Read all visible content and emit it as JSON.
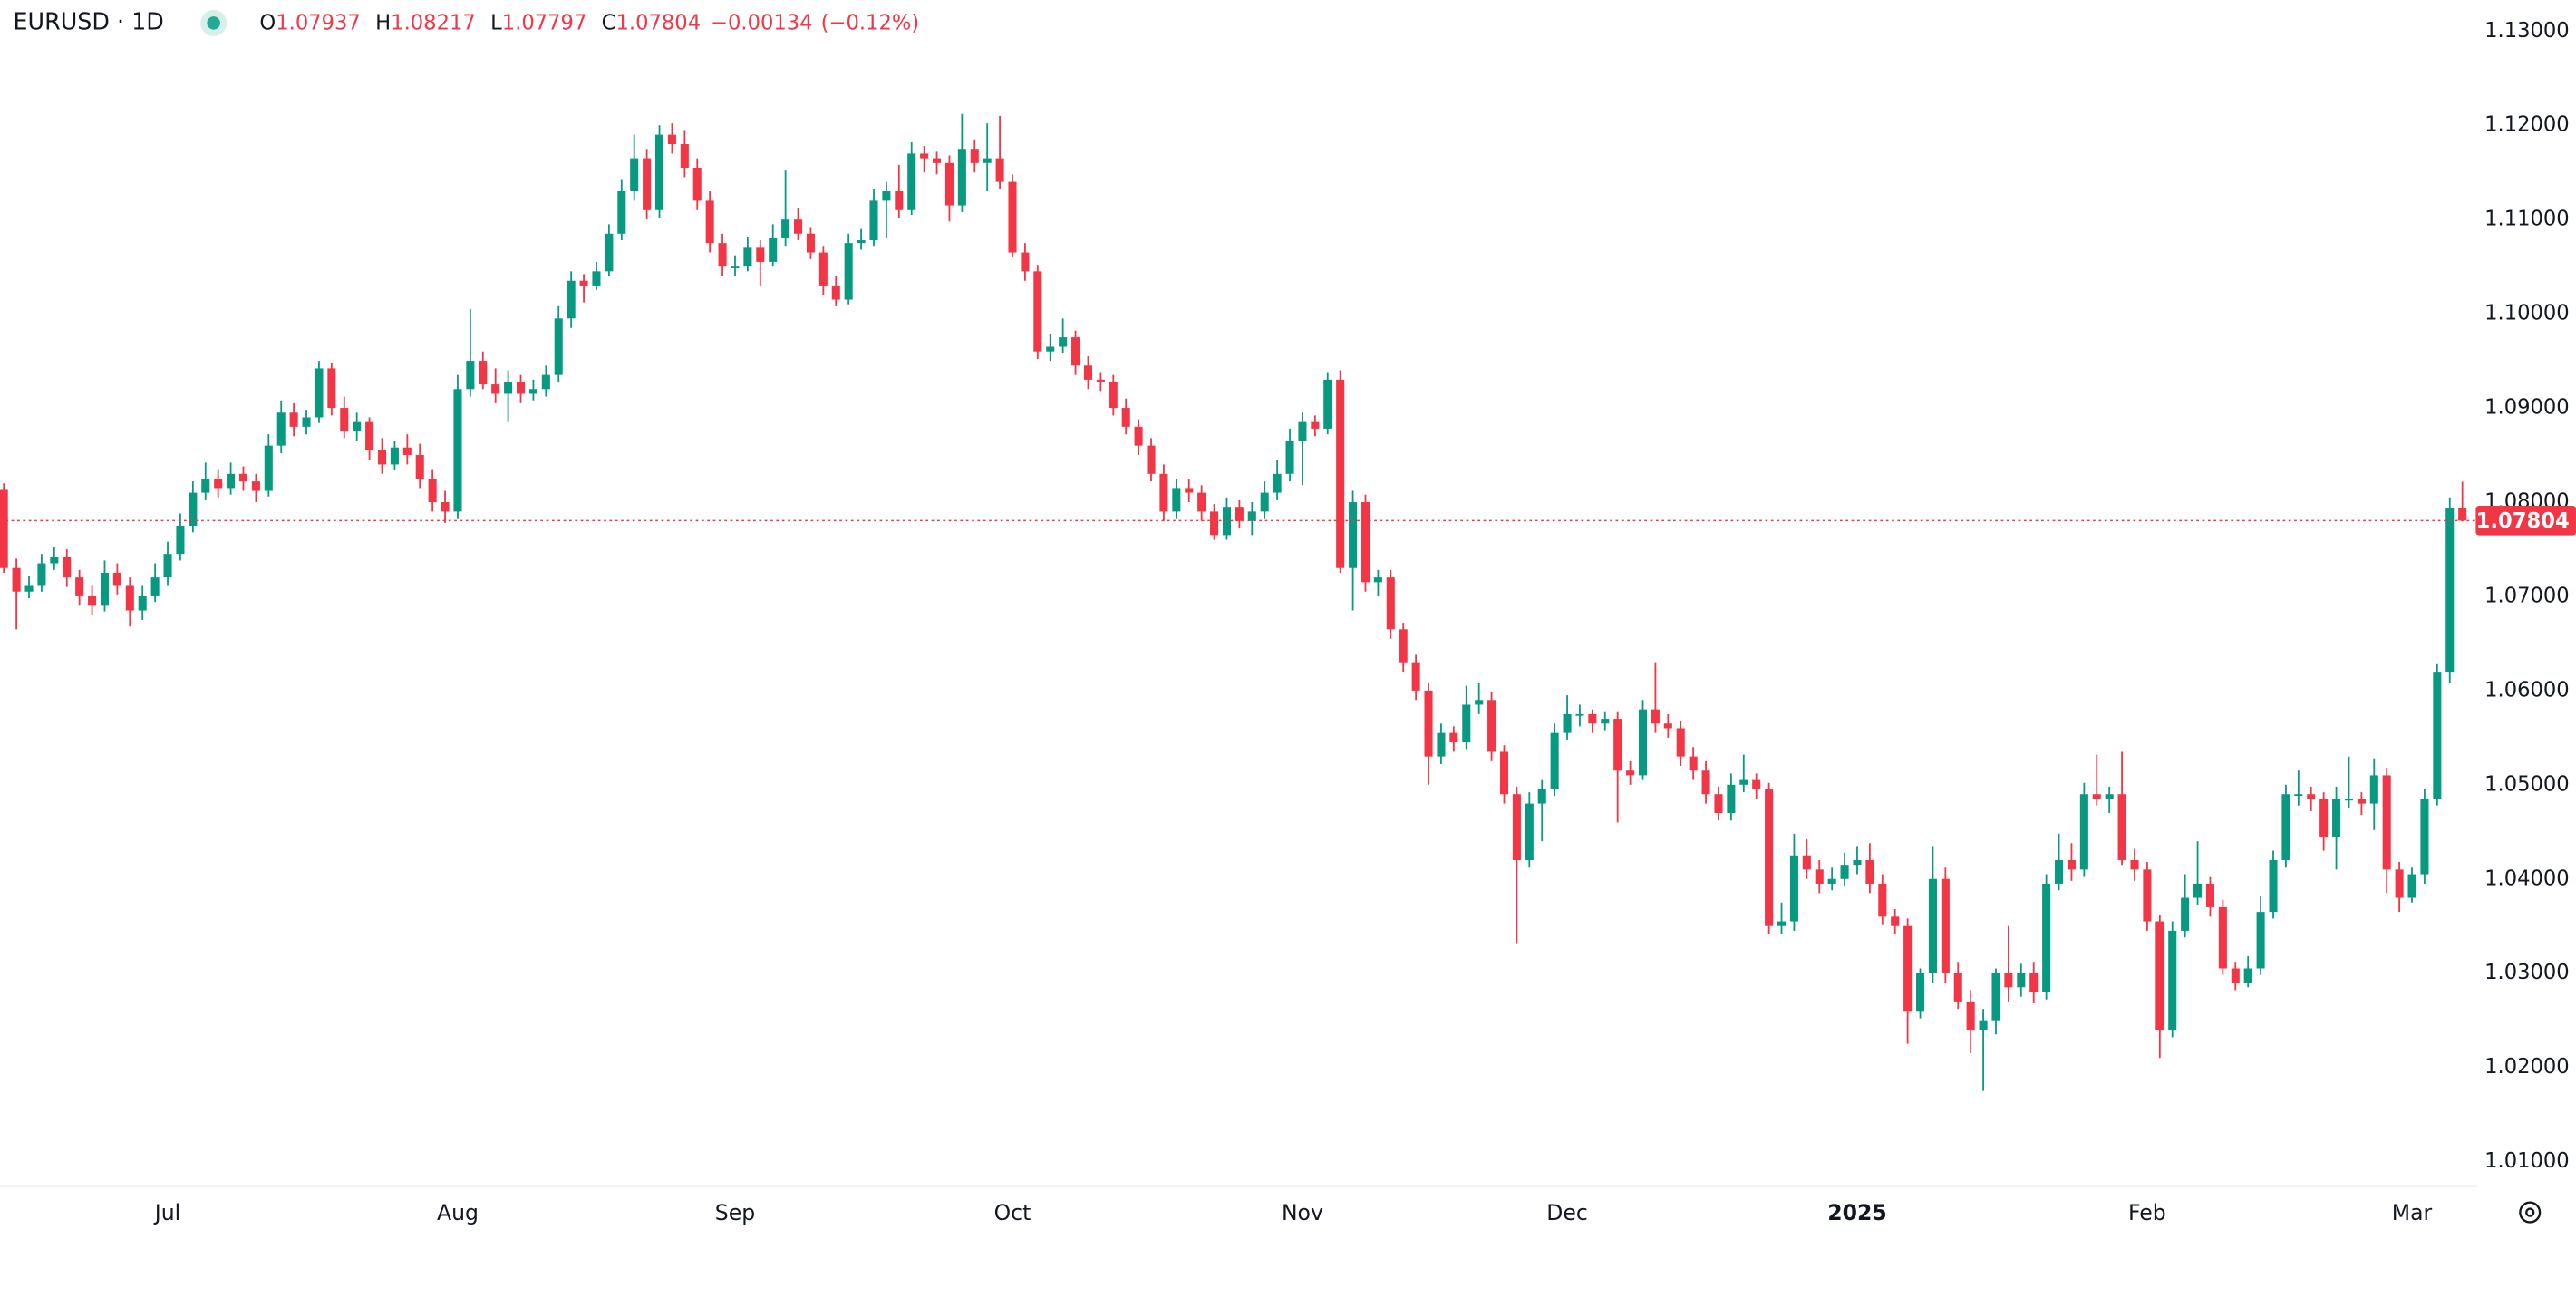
{
  "chart_data": {
    "type": "candlestick",
    "symbol": "EURUSD · 1D",
    "ohlc_labels": [
      "O",
      "H",
      "L",
      "C"
    ],
    "change": "−0.00134",
    "change_pct": "(−0.12%)",
    "up_color": "#089981",
    "down_color": "#f23645",
    "grid": false,
    "xlim": [
      -0.3,
      195.8
    ],
    "ylim": [
      1.0074,
      1.1333
    ],
    "xticks": [
      {
        "value": 13,
        "label": "Jul"
      },
      {
        "value": 36,
        "label": "Aug"
      },
      {
        "value": 58,
        "label": "Sep"
      },
      {
        "value": 80,
        "label": "Oct"
      },
      {
        "value": 103,
        "label": "Nov"
      },
      {
        "value": 124,
        "label": "Dec"
      },
      {
        "value": 147,
        "label": "2025"
      },
      {
        "value": 170,
        "label": "Feb"
      },
      {
        "value": 191,
        "label": "Mar"
      }
    ],
    "yticks": [
      {
        "value": 1.01,
        "label": "1.01000"
      },
      {
        "value": 1.02,
        "label": "1.02000"
      },
      {
        "value": 1.03,
        "label": "1.03000"
      },
      {
        "value": 1.04,
        "label": "1.04000"
      },
      {
        "value": 1.05,
        "label": "1.05000"
      },
      {
        "value": 1.06,
        "label": "1.06000"
      },
      {
        "value": 1.07,
        "label": "1.07000"
      },
      {
        "value": 1.08,
        "label": "1.08000"
      },
      {
        "value": 1.09,
        "label": "1.09000"
      },
      {
        "value": 1.1,
        "label": "1.10000"
      },
      {
        "value": 1.11,
        "label": "1.11000"
      },
      {
        "value": 1.12,
        "label": "1.12000"
      },
      {
        "value": 1.13,
        "label": "1.13000"
      }
    ],
    "ohlc": [
      [
        1.0813,
        1.082,
        1.0725,
        1.073
      ],
      [
        1.073,
        1.074,
        1.0665,
        1.0705
      ],
      [
        1.0705,
        1.0722,
        1.0698,
        1.0712
      ],
      [
        1.0712,
        1.0745,
        1.0705,
        1.0735
      ],
      [
        1.0735,
        1.0752,
        1.0728,
        1.0742
      ],
      [
        1.0742,
        1.075,
        1.071,
        1.072
      ],
      [
        1.072,
        1.0728,
        1.069,
        1.07
      ],
      [
        1.07,
        1.0712,
        1.068,
        1.069
      ],
      [
        1.069,
        1.0738,
        1.0684,
        1.0725
      ],
      [
        1.0725,
        1.0735,
        1.0702,
        1.0712
      ],
      [
        1.0712,
        1.072,
        1.0668,
        1.0685
      ],
      [
        1.0685,
        1.0712,
        1.0675,
        1.07
      ],
      [
        1.07,
        1.0735,
        1.0694,
        1.072
      ],
      [
        1.072,
        1.0758,
        1.0712,
        1.0745
      ],
      [
        1.0745,
        1.0788,
        1.0738,
        1.0775
      ],
      [
        1.0775,
        1.0822,
        1.0768,
        1.081
      ],
      [
        1.081,
        1.0842,
        1.0802,
        1.0825
      ],
      [
        1.0825,
        1.0835,
        1.0805,
        1.0815
      ],
      [
        1.0815,
        1.0842,
        1.0808,
        1.083
      ],
      [
        1.083,
        1.0838,
        1.0812,
        1.0822
      ],
      [
        1.0822,
        1.083,
        1.08,
        1.0812
      ],
      [
        1.0812,
        1.0872,
        1.0806,
        1.086
      ],
      [
        1.086,
        1.0908,
        1.0852,
        1.0895
      ],
      [
        1.0895,
        1.0905,
        1.087,
        1.088
      ],
      [
        1.088,
        1.0898,
        1.0872,
        1.089
      ],
      [
        1.089,
        1.095,
        1.0884,
        1.0942
      ],
      [
        1.0942,
        1.0948,
        1.0892,
        1.09
      ],
      [
        1.09,
        1.0912,
        1.0868,
        1.0875
      ],
      [
        1.0875,
        1.0895,
        1.0865,
        1.0885
      ],
      [
        1.0885,
        1.089,
        1.0845,
        1.0855
      ],
      [
        1.0855,
        1.0868,
        1.083,
        1.084
      ],
      [
        1.084,
        1.0865,
        1.0834,
        1.0858
      ],
      [
        1.0858,
        1.0872,
        1.084,
        1.085
      ],
      [
        1.085,
        1.0862,
        1.0815,
        1.0825
      ],
      [
        1.0825,
        1.0835,
        1.079,
        1.08
      ],
      [
        1.08,
        1.0812,
        1.0778,
        1.079
      ],
      [
        1.079,
        1.0935,
        1.0782,
        1.092
      ],
      [
        1.092,
        1.1005,
        1.0912,
        1.095
      ],
      [
        1.095,
        1.096,
        1.092,
        1.0925
      ],
      [
        1.0925,
        1.0942,
        1.0905,
        1.0915
      ],
      [
        1.0915,
        1.094,
        1.0885,
        1.0928
      ],
      [
        1.0928,
        1.0935,
        1.0905,
        1.0915
      ],
      [
        1.0915,
        1.093,
        1.0908,
        1.092
      ],
      [
        1.092,
        1.0945,
        1.0912,
        1.0935
      ],
      [
        1.0935,
        1.1008,
        1.0928,
        1.0995
      ],
      [
        1.0995,
        1.1045,
        1.0985,
        1.1035
      ],
      [
        1.1035,
        1.1042,
        1.1012,
        1.103
      ],
      [
        1.103,
        1.1055,
        1.1025,
        1.1045
      ],
      [
        1.1045,
        1.1095,
        1.104,
        1.1085
      ],
      [
        1.1085,
        1.1142,
        1.1078,
        1.113
      ],
      [
        1.113,
        1.119,
        1.112,
        1.1165
      ],
      [
        1.1165,
        1.1175,
        1.11,
        1.111
      ],
      [
        1.111,
        1.12,
        1.1102,
        1.119
      ],
      [
        1.119,
        1.1202,
        1.117,
        1.118
      ],
      [
        1.118,
        1.1195,
        1.1145,
        1.1155
      ],
      [
        1.1155,
        1.1165,
        1.111,
        1.112
      ],
      [
        1.112,
        1.113,
        1.1065,
        1.1075
      ],
      [
        1.1075,
        1.1085,
        1.104,
        1.105
      ],
      [
        1.105,
        1.1062,
        1.104,
        1.105
      ],
      [
        1.105,
        1.1082,
        1.1045,
        1.107
      ],
      [
        1.107,
        1.1078,
        1.103,
        1.1055
      ],
      [
        1.1055,
        1.1095,
        1.105,
        1.108
      ],
      [
        1.108,
        1.1152,
        1.1072,
        1.11
      ],
      [
        1.11,
        1.1112,
        1.1078,
        1.1085
      ],
      [
        1.1085,
        1.1092,
        1.1058,
        1.1065
      ],
      [
        1.1065,
        1.1072,
        1.102,
        1.103
      ],
      [
        1.103,
        1.104,
        1.1008,
        1.1015
      ],
      [
        1.1015,
        1.1085,
        1.101,
        1.1075
      ],
      [
        1.1075,
        1.109,
        1.1068,
        1.1078
      ],
      [
        1.1078,
        1.1132,
        1.1072,
        1.112
      ],
      [
        1.112,
        1.114,
        1.108,
        1.113
      ],
      [
        1.113,
        1.1158,
        1.1102,
        1.111
      ],
      [
        1.111,
        1.1182,
        1.1105,
        1.117
      ],
      [
        1.117,
        1.1178,
        1.115,
        1.1165
      ],
      [
        1.1165,
        1.1172,
        1.1148,
        1.116
      ],
      [
        1.116,
        1.1168,
        1.1098,
        1.1115
      ],
      [
        1.1115,
        1.1212,
        1.1108,
        1.1175
      ],
      [
        1.1175,
        1.1185,
        1.115,
        1.116
      ],
      [
        1.116,
        1.1202,
        1.113,
        1.1165
      ],
      [
        1.1165,
        1.121,
        1.1132,
        1.114
      ],
      [
        1.114,
        1.1148,
        1.106,
        1.1065
      ],
      [
        1.1065,
        1.1075,
        1.1035,
        1.1045
      ],
      [
        1.1045,
        1.1052,
        1.0952,
        1.096
      ],
      [
        1.096,
        1.0978,
        1.095,
        1.0965
      ],
      [
        1.0965,
        1.0995,
        1.0958,
        1.0975
      ],
      [
        1.0975,
        1.0982,
        1.0935,
        1.0945
      ],
      [
        1.0945,
        1.0955,
        1.092,
        1.093
      ],
      [
        1.093,
        1.0938,
        1.0918,
        1.0928
      ],
      [
        1.0928,
        1.0935,
        1.0892,
        1.09
      ],
      [
        1.09,
        1.091,
        1.0872,
        1.088
      ],
      [
        1.088,
        1.0888,
        1.085,
        1.086
      ],
      [
        1.086,
        1.0868,
        1.0822,
        1.083
      ],
      [
        1.083,
        1.084,
        1.078,
        1.079
      ],
      [
        1.079,
        1.0825,
        1.0782,
        1.0815
      ],
      [
        1.0815,
        1.0825,
        1.08,
        1.081
      ],
      [
        1.081,
        1.0818,
        1.078,
        1.079
      ],
      [
        1.079,
        1.0798,
        1.076,
        1.0765
      ],
      [
        1.0765,
        1.0805,
        1.076,
        1.0795
      ],
      [
        1.0795,
        1.0802,
        1.0772,
        1.078
      ],
      [
        1.078,
        1.08,
        1.0765,
        1.079
      ],
      [
        1.079,
        1.0822,
        1.0782,
        1.081
      ],
      [
        1.081,
        1.0845,
        1.0802,
        1.083
      ],
      [
        1.083,
        1.0878,
        1.0822,
        1.0865
      ],
      [
        1.0865,
        1.0895,
        1.0818,
        1.0885
      ],
      [
        1.0885,
        1.0892,
        1.087,
        1.0878
      ],
      [
        1.0878,
        1.0938,
        1.0872,
        1.093
      ],
      [
        1.093,
        1.094,
        1.0725,
        1.073
      ],
      [
        1.073,
        1.0812,
        1.0685,
        1.08
      ],
      [
        1.08,
        1.0808,
        1.0705,
        1.0715
      ],
      [
        1.0715,
        1.0728,
        1.07,
        1.072
      ],
      [
        1.072,
        1.0728,
        1.0655,
        1.0665
      ],
      [
        1.0665,
        1.0672,
        1.062,
        1.063
      ],
      [
        1.063,
        1.0638,
        1.059,
        1.06
      ],
      [
        1.06,
        1.0608,
        1.05,
        1.053
      ],
      [
        1.053,
        1.0565,
        1.0522,
        1.0555
      ],
      [
        1.0555,
        1.0562,
        1.0535,
        1.0545
      ],
      [
        1.0545,
        1.0605,
        1.0538,
        1.0585
      ],
      [
        1.0585,
        1.0608,
        1.0575,
        1.059
      ],
      [
        1.059,
        1.0598,
        1.0525,
        1.0535
      ],
      [
        1.0535,
        1.0542,
        1.048,
        1.049
      ],
      [
        1.049,
        1.0498,
        1.0332,
        1.042
      ],
      [
        1.042,
        1.0492,
        1.0412,
        1.048
      ],
      [
        1.048,
        1.0505,
        1.044,
        1.0495
      ],
      [
        1.0495,
        1.0565,
        1.0488,
        1.0555
      ],
      [
        1.0555,
        1.0595,
        1.0548,
        1.0575
      ],
      [
        1.0575,
        1.0585,
        1.0562,
        1.0575
      ],
      [
        1.0575,
        1.058,
        1.0555,
        1.0565
      ],
      [
        1.0565,
        1.0578,
        1.0558,
        1.057
      ],
      [
        1.057,
        1.0578,
        1.046,
        1.0515
      ],
      [
        1.0515,
        1.0525,
        1.05,
        1.051
      ],
      [
        1.051,
        1.059,
        1.0505,
        1.058
      ],
      [
        1.058,
        1.063,
        1.0555,
        1.0565
      ],
      [
        1.0565,
        1.0575,
        1.055,
        1.056
      ],
      [
        1.056,
        1.0568,
        1.052,
        1.053
      ],
      [
        1.053,
        1.054,
        1.0505,
        1.0515
      ],
      [
        1.0515,
        1.0525,
        1.048,
        1.049
      ],
      [
        1.049,
        1.0498,
        1.0462,
        1.047
      ],
      [
        1.047,
        1.0512,
        1.0462,
        1.05
      ],
      [
        1.05,
        1.0532,
        1.0492,
        1.0505
      ],
      [
        1.0505,
        1.0512,
        1.0485,
        1.0495
      ],
      [
        1.0495,
        1.0502,
        1.0342,
        1.035
      ],
      [
        1.035,
        1.0375,
        1.0342,
        1.0355
      ],
      [
        1.0355,
        1.0448,
        1.0345,
        1.0425
      ],
      [
        1.0425,
        1.0442,
        1.04,
        1.041
      ],
      [
        1.041,
        1.042,
        1.0385,
        1.0395
      ],
      [
        1.0395,
        1.0412,
        1.0388,
        1.04
      ],
      [
        1.04,
        1.0428,
        1.0392,
        1.0415
      ],
      [
        1.0415,
        1.0435,
        1.0405,
        1.042
      ],
      [
        1.042,
        1.0438,
        1.0385,
        1.0395
      ],
      [
        1.0395,
        1.0405,
        1.0352,
        1.036
      ],
      [
        1.036,
        1.0368,
        1.0342,
        1.035
      ],
      [
        1.035,
        1.0358,
        1.0225,
        1.026
      ],
      [
        1.026,
        1.0305,
        1.0252,
        1.03
      ],
      [
        1.03,
        1.0435,
        1.029,
        1.04
      ],
      [
        1.04,
        1.0412,
        1.029,
        1.03
      ],
      [
        1.03,
        1.0312,
        1.0262,
        1.027
      ],
      [
        1.027,
        1.0282,
        1.0215,
        1.024
      ],
      [
        1.024,
        1.0262,
        1.0175,
        1.025
      ],
      [
        1.025,
        1.0305,
        1.0235,
        1.03
      ],
      [
        1.03,
        1.035,
        1.027,
        1.0285
      ],
      [
        1.0285,
        1.031,
        1.0275,
        1.03
      ],
      [
        1.03,
        1.0312,
        1.0268,
        1.028
      ],
      [
        1.028,
        1.0405,
        1.0272,
        1.0395
      ],
      [
        1.0395,
        1.0448,
        1.0388,
        1.042
      ],
      [
        1.042,
        1.0438,
        1.0398,
        1.041
      ],
      [
        1.041,
        1.0502,
        1.0402,
        1.049
      ],
      [
        1.049,
        1.0532,
        1.0478,
        1.0485
      ],
      [
        1.0485,
        1.0498,
        1.047,
        1.049
      ],
      [
        1.049,
        1.0535,
        1.0415,
        1.042
      ],
      [
        1.042,
        1.0432,
        1.0398,
        1.041
      ],
      [
        1.041,
        1.0418,
        1.0345,
        1.0355
      ],
      [
        1.0355,
        1.0362,
        1.021,
        1.024
      ],
      [
        1.024,
        1.0355,
        1.0232,
        1.0345
      ],
      [
        1.0345,
        1.0405,
        1.0338,
        1.038
      ],
      [
        1.038,
        1.044,
        1.0372,
        1.0395
      ],
      [
        1.0395,
        1.0402,
        1.036,
        1.037
      ],
      [
        1.037,
        1.0378,
        1.0298,
        1.0305
      ],
      [
        1.0305,
        1.0312,
        1.0282,
        1.029
      ],
      [
        1.029,
        1.0318,
        1.0285,
        1.0305
      ],
      [
        1.0305,
        1.0382,
        1.0298,
        1.0365
      ],
      [
        1.0365,
        1.043,
        1.0358,
        1.042
      ],
      [
        1.042,
        1.05,
        1.0412,
        1.049
      ],
      [
        1.049,
        1.0515,
        1.0478,
        1.049
      ],
      [
        1.049,
        1.0498,
        1.0472,
        1.0485
      ],
      [
        1.0485,
        1.0492,
        1.043,
        1.0445
      ],
      [
        1.0445,
        1.0498,
        1.041,
        1.0485
      ],
      [
        1.0485,
        1.053,
        1.0475,
        1.0485
      ],
      [
        1.0485,
        1.0492,
        1.0468,
        1.048
      ],
      [
        1.048,
        1.0528,
        1.0452,
        1.051
      ],
      [
        1.051,
        1.0518,
        1.0385,
        1.041
      ],
      [
        1.041,
        1.0418,
        1.0365,
        1.038
      ],
      [
        1.038,
        1.0412,
        1.0375,
        1.0405
      ],
      [
        1.0405,
        1.0495,
        1.0395,
        1.0485
      ],
      [
        1.0485,
        1.0628,
        1.0478,
        1.062
      ],
      [
        1.062,
        1.0805,
        1.0608,
        1.0794
      ],
      [
        1.07937,
        1.08217,
        1.07797,
        1.07804
      ]
    ]
  }
}
